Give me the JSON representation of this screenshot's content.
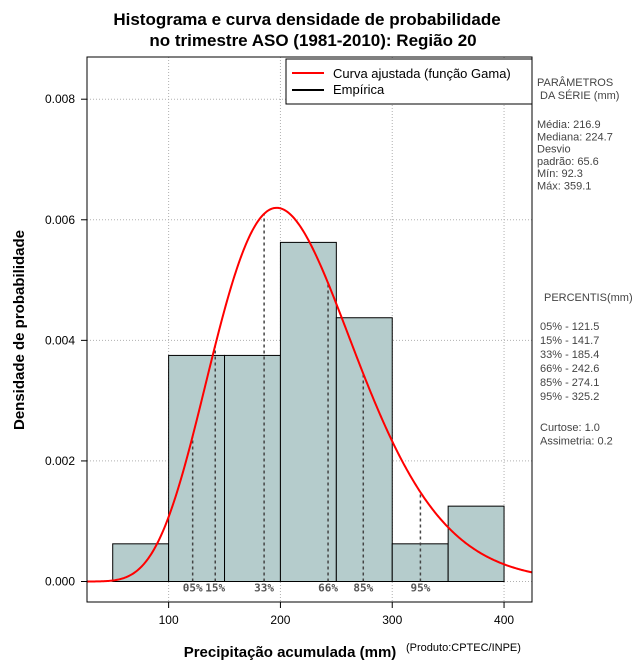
{
  "chart_data": {
    "type": "bar",
    "title_line1": "Histograma e curva densidade de probabilidade",
    "title_line2": "no trimestre ASO (1981-2010): Região 20",
    "xlabel": "Precipitação acumulada (mm)",
    "ylabel": "Densidade de probabilidade",
    "credit": "(Produto:CPTEC/INPE)",
    "xlim": [
      27,
      425
    ],
    "ylim": [
      -0.00034,
      0.0087
    ],
    "x_ticks": [
      100,
      200,
      300,
      400
    ],
    "y_ticks": [
      0.0,
      0.002,
      0.004,
      0.006,
      0.008
    ],
    "x_tick_labels": [
      "100",
      "200",
      "300",
      "400"
    ],
    "y_tick_labels": [
      "0.000",
      "0.002",
      "0.004",
      "0.006",
      "0.008"
    ],
    "grid": true,
    "bins": [
      {
        "x0": 50,
        "x1": 100,
        "density": 0.000625
      },
      {
        "x0": 100,
        "x1": 150,
        "density": 0.00375
      },
      {
        "x0": 150,
        "x1": 200,
        "density": 0.00375
      },
      {
        "x0": 200,
        "x1": 250,
        "density": 0.005625
      },
      {
        "x0": 250,
        "x1": 300,
        "density": 0.004375
      },
      {
        "x0": 300,
        "x1": 350,
        "density": 0.000625
      },
      {
        "x0": 350,
        "x1": 400,
        "density": 0.00125
      }
    ],
    "fitted_curve": {
      "name": "Curva ajustada (função Gama)",
      "color": "#ff0000",
      "shape": 10.5,
      "scale": 20.7,
      "x_range": [
        27,
        425
      ]
    },
    "empirical": {
      "name": "Empírica",
      "color": "#000000"
    },
    "percentile_markers": [
      {
        "label": "05%",
        "x": 121.5
      },
      {
        "label": "15%",
        "x": 141.7
      },
      {
        "label": "33%",
        "x": 185.4
      },
      {
        "label": "66%",
        "x": 242.6
      },
      {
        "label": "85%",
        "x": 274.1
      },
      {
        "label": "95%",
        "x": 325.2
      }
    ],
    "legend_position": "top-right",
    "bar_color": "#b5cccc"
  },
  "side_panel": {
    "params_title1": "PARÂMETROS",
    "params_title2": "DA SÉRIE (mm)",
    "stats_lines": [
      "Média:  216.9",
      "Mediana:  224.7",
      "Desvio",
      "padrão:  65.6",
      "Mín:  92.3",
      "Máx:  359.1"
    ],
    "percentis_title": "PERCENTIS(mm)",
    "percentis_lines": [
      "05% -   121.5",
      "15% -   141.7",
      "33% -   185.4",
      "66% -   242.6",
      "85% -   274.1",
      "95% -   325.2"
    ],
    "shape_lines": [
      "Curtose:  1.0",
      "Assimetria:  0.2"
    ]
  }
}
